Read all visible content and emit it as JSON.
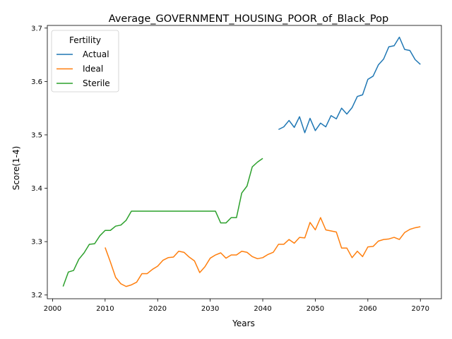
{
  "chart_data": {
    "type": "line",
    "title": "Average_GOVERNMENT_HOUSING_POOR_of_Black_Pop",
    "xlabel": "Years",
    "ylabel": "Score(1-4)",
    "xlim": [
      1999,
      2074
    ],
    "ylim": [
      3.193,
      3.705
    ],
    "x_ticks": [
      2000,
      2010,
      2020,
      2030,
      2040,
      2050,
      2060,
      2070
    ],
    "y_ticks": [
      3.2,
      3.3,
      3.4,
      3.5,
      3.6,
      3.7
    ],
    "grid": false,
    "legend": {
      "title": "Fertility",
      "position": "top-left",
      "entries": [
        "Actual",
        "Ideal",
        "Sterile"
      ]
    },
    "series": [
      {
        "name": "Actual",
        "color": "#1f77b4",
        "x": [
          2043,
          2044,
          2045,
          2046,
          2047,
          2048,
          2049,
          2050,
          2051,
          2052,
          2053,
          2054,
          2055,
          2056,
          2057,
          2058,
          2059,
          2060,
          2061,
          2062,
          2063,
          2064,
          2065,
          2066,
          2067,
          2068,
          2069,
          2070
        ],
        "y": [
          3.51,
          3.515,
          3.527,
          3.514,
          3.534,
          3.504,
          3.531,
          3.508,
          3.522,
          3.515,
          3.536,
          3.53,
          3.55,
          3.539,
          3.551,
          3.572,
          3.575,
          3.604,
          3.61,
          3.631,
          3.642,
          3.665,
          3.667,
          3.683,
          3.66,
          3.658,
          3.641,
          3.632
        ]
      },
      {
        "name": "Ideal",
        "color": "#ff7f0e",
        "x": [
          2010,
          2011,
          2012,
          2013,
          2014,
          2015,
          2016,
          2017,
          2018,
          2019,
          2020,
          2021,
          2022,
          2023,
          2024,
          2025,
          2026,
          2027,
          2028,
          2029,
          2030,
          2031,
          2032,
          2033,
          2034,
          2035,
          2036,
          2037,
          2038,
          2039,
          2040,
          2041,
          2042,
          2043,
          2044,
          2045,
          2046,
          2047,
          2048,
          2049,
          2050,
          2051,
          2052,
          2053,
          2054,
          2055,
          2056,
          2057,
          2058,
          2059,
          2060,
          2061,
          2062,
          2063,
          2064,
          2065,
          2066,
          2067,
          2068,
          2069,
          2070
        ],
        "y": [
          3.289,
          3.262,
          3.233,
          3.221,
          3.216,
          3.219,
          3.224,
          3.24,
          3.24,
          3.248,
          3.254,
          3.265,
          3.27,
          3.271,
          3.282,
          3.28,
          3.271,
          3.264,
          3.242,
          3.253,
          3.269,
          3.275,
          3.279,
          3.269,
          3.275,
          3.275,
          3.282,
          3.28,
          3.272,
          3.268,
          3.27,
          3.276,
          3.28,
          3.295,
          3.295,
          3.304,
          3.297,
          3.308,
          3.307,
          3.336,
          3.322,
          3.345,
          3.322,
          3.32,
          3.318,
          3.288,
          3.288,
          3.27,
          3.282,
          3.272,
          3.29,
          3.291,
          3.301,
          3.304,
          3.305,
          3.308,
          3.304,
          3.317,
          3.323,
          3.326,
          3.328
        ]
      },
      {
        "name": "Sterile",
        "color": "#2ca02c",
        "x": [
          2002,
          2003,
          2004,
          2005,
          2006,
          2007,
          2008,
          2009,
          2010,
          2011,
          2012,
          2013,
          2014,
          2015,
          2016,
          2017,
          2018,
          2019,
          2020,
          2021,
          2022,
          2023,
          2024,
          2025,
          2026,
          2027,
          2028,
          2029,
          2030,
          2031,
          2032,
          2033,
          2034,
          2035,
          2036,
          2037,
          2038,
          2039,
          2040
        ],
        "y": [
          3.216,
          3.243,
          3.246,
          3.267,
          3.279,
          3.295,
          3.296,
          3.311,
          3.321,
          3.321,
          3.329,
          3.331,
          3.34,
          3.357,
          3.357,
          3.357,
          3.357,
          3.357,
          3.357,
          3.357,
          3.357,
          3.357,
          3.357,
          3.357,
          3.357,
          3.357,
          3.357,
          3.357,
          3.357,
          3.357,
          3.335,
          3.335,
          3.345,
          3.345,
          3.391,
          3.404,
          3.44,
          3.449,
          3.456
        ]
      }
    ]
  }
}
